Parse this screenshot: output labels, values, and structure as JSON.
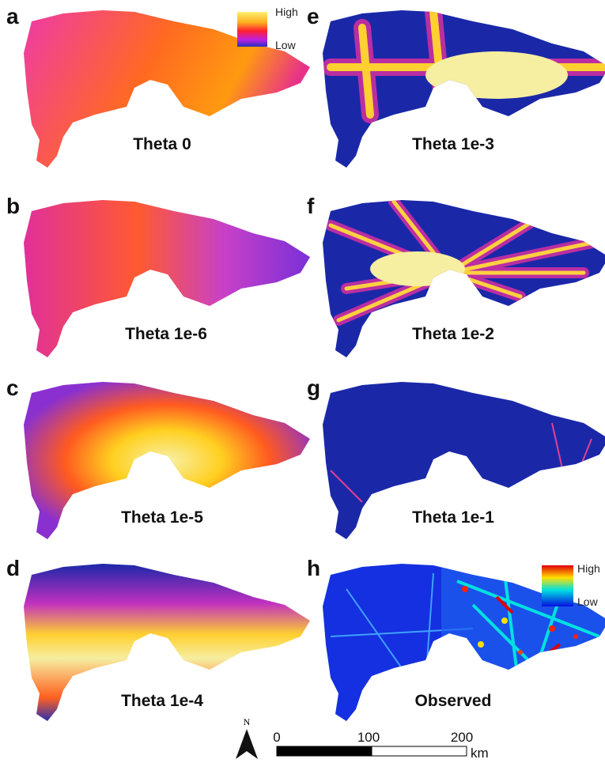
{
  "panels": [
    {
      "letter": "a",
      "title": "Theta 0"
    },
    {
      "letter": "b",
      "title": "Theta 1e-6"
    },
    {
      "letter": "c",
      "title": "Theta 1e-5"
    },
    {
      "letter": "d",
      "title": "Theta 1e-4"
    },
    {
      "letter": "e",
      "title": "Theta 1e-3"
    },
    {
      "letter": "f",
      "title": "Theta 1e-2"
    },
    {
      "letter": "g",
      "title": "Theta 1e-1"
    },
    {
      "letter": "h",
      "title": "Observed"
    }
  ],
  "legends": [
    {
      "high": "High",
      "low": "Low"
    },
    {
      "high": "High",
      "low": "Low"
    }
  ],
  "north": "N",
  "scale_bar": {
    "labels": [
      0,
      100,
      200
    ],
    "unit": "km"
  }
}
